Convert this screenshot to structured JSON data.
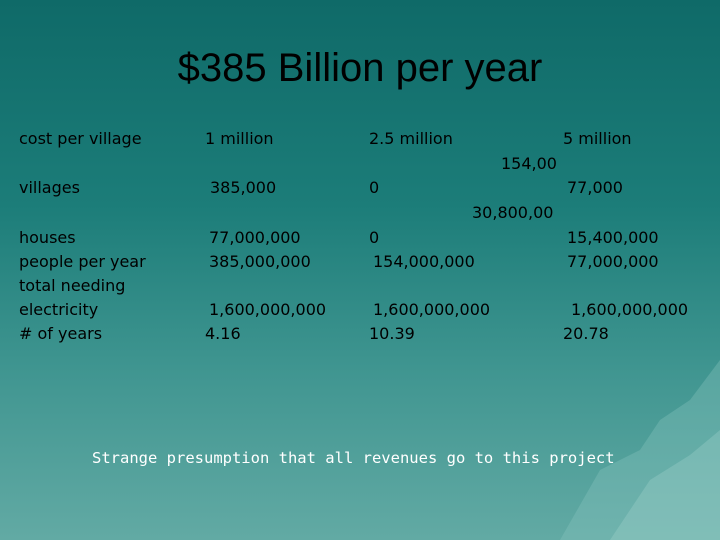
{
  "slide": {
    "title": "$385 Billion per year",
    "caption": "Strange presumption that all revenues go to this project",
    "colors": {
      "background_top": "#0f6a68",
      "background_bottom": "#62aaa4",
      "caption_text": "#ffffff"
    }
  },
  "table": {
    "row_labels": {
      "cost_per_village": "cost per village",
      "villages": "villages",
      "houses": "houses",
      "people_per_year": "people per year",
      "total_needing_electricity_1": "total needing",
      "total_needing_electricity_2": "electricity",
      "num_years": "# of years"
    },
    "col1": {
      "cost": "1 million",
      "villages": "385,000",
      "houses": "77,000,000",
      "people": "385,000,000",
      "total": "1,600,000,000",
      "years": "4.16"
    },
    "col2": {
      "cost": "2.5 million",
      "villages_overflow": "154,00",
      "villages": "0",
      "houses_overflow": "30,800,00",
      "houses": "0",
      "people": "154,000,000",
      "total": "1,600,000,000",
      "years": "10.39"
    },
    "col3": {
      "cost": "5 million",
      "villages": "77,000",
      "houses": "15,400,000",
      "people": "77,000,000",
      "total": "1,600,000,000",
      "years": "20.78"
    }
  }
}
